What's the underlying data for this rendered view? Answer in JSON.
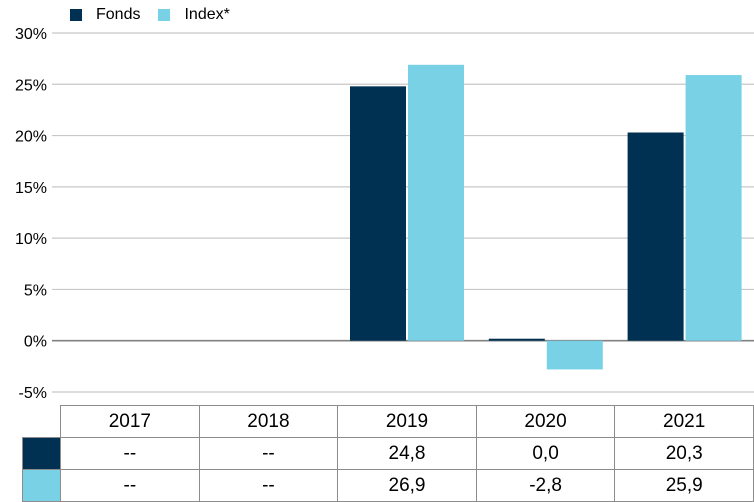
{
  "legend": {
    "fonds": "Fonds",
    "index": "Index*"
  },
  "colors": {
    "fonds": "#003153",
    "index": "#78d1e5",
    "grid": "#c8c8c8",
    "zero": "#808080"
  },
  "chart_data": {
    "type": "bar",
    "categories": [
      "2017",
      "2018",
      "2019",
      "2020",
      "2021"
    ],
    "series": [
      {
        "name": "Fonds",
        "values": [
          null,
          null,
          24.8,
          0.0,
          20.3
        ]
      },
      {
        "name": "Index*",
        "values": [
          null,
          null,
          26.9,
          -2.8,
          25.9
        ]
      }
    ],
    "ylim": [
      -5,
      30
    ],
    "yticks": [
      "30%",
      "25%",
      "20%",
      "15%",
      "10%",
      "5%",
      "0%",
      "-5%"
    ],
    "grid": true,
    "legend_position": "top-left"
  },
  "table": {
    "years": [
      "2017",
      "2018",
      "2019",
      "2020",
      "2021"
    ],
    "fonds_row": [
      "--",
      "--",
      "24,8",
      "0,0",
      "20,3"
    ],
    "index_row": [
      "--",
      "--",
      "26,9",
      "-2,8",
      "25,9"
    ]
  }
}
